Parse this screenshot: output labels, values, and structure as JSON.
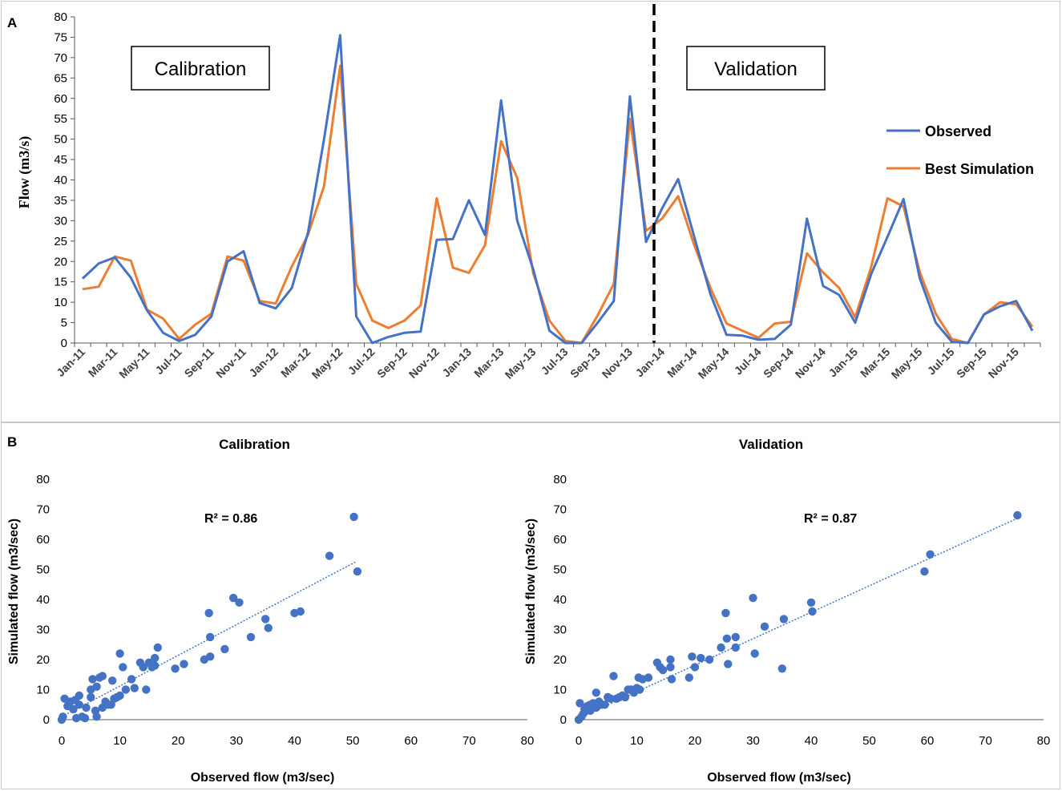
{
  "chart_data": [
    {
      "type": "line",
      "panel": "A",
      "title": "",
      "xlabel": "",
      "ylabel": "Flow (m3/s)",
      "ylim": [
        0,
        80
      ],
      "yticks": [
        0,
        5,
        10,
        15,
        20,
        25,
        30,
        35,
        40,
        45,
        50,
        55,
        60,
        65,
        70,
        75,
        80
      ],
      "categories": [
        "Jan-11",
        "Feb-11",
        "Mar-11",
        "Apr-11",
        "May-11",
        "Jun-11",
        "Jul-11",
        "Aug-11",
        "Sep-11",
        "Oct-11",
        "Nov-11",
        "Dec-11",
        "Jan-12",
        "Feb-12",
        "Mar-12",
        "Apr-12",
        "May-12",
        "Jun-12",
        "Jul-12",
        "Aug-12",
        "Sep-12",
        "Oct-12",
        "Nov-12",
        "Dec-12",
        "Jan-13",
        "Feb-13",
        "Mar-13",
        "Apr-13",
        "May-13",
        "Jun-13",
        "Jul-13",
        "Aug-13",
        "Sep-13",
        "Oct-13",
        "Nov-13",
        "Dec-13",
        "Jan-14",
        "Feb-14",
        "Mar-14",
        "Apr-14",
        "May-14",
        "Jun-14",
        "Jul-14",
        "Aug-14",
        "Sep-14",
        "Oct-14",
        "Nov-14",
        "Dec-14",
        "Jan-15",
        "Feb-15",
        "Mar-15",
        "Apr-15",
        "May-15",
        "Jun-15",
        "Jul-15",
        "Aug-15",
        "Sep-15",
        "Oct-15",
        "Nov-15",
        "Dec-15"
      ],
      "tick_labels": [
        "Jan-11",
        "Mar-11",
        "May-11",
        "Jul-11",
        "Sep-11",
        "Nov-11",
        "Jan-12",
        "Mar-12",
        "May-12",
        "Jul-12",
        "Sep-12",
        "Nov-12",
        "Jan-13",
        "Mar-13",
        "May-13",
        "Jul-13",
        "Sep-13",
        "Nov-13",
        "Jan-14",
        "Mar-14",
        "May-14",
        "Jul-14",
        "Sep-14",
        "Nov-14",
        "Jan-15",
        "Mar-15",
        "May-15",
        "Jul-15",
        "Sep-15",
        "Nov-15"
      ],
      "series": [
        {
          "name": "Observed",
          "color": "#4472C4",
          "values": [
            15.8,
            19.5,
            21,
            16,
            8,
            2.5,
            0.5,
            2,
            6.5,
            20,
            22.5,
            9.8,
            8.5,
            13.5,
            27,
            50,
            75.5,
            6.5,
            0,
            1.5,
            2.5,
            2.8,
            25.3,
            25.5,
            35,
            26.5,
            59.5,
            30,
            18,
            3,
            0,
            0,
            5,
            10.3,
            60.5,
            24.8,
            33,
            40.2,
            26,
            12,
            2,
            1.8,
            0.8,
            1,
            4.5,
            30.5,
            14,
            11.8,
            5,
            17,
            26,
            35.3,
            16,
            5,
            0.3,
            0,
            7,
            9,
            10.3,
            3
          ]
        },
        {
          "name": "Best Simulation",
          "color": "#ED7D31",
          "values": [
            13.2,
            13.8,
            21.2,
            20.2,
            8.2,
            6,
            1,
            4.5,
            7.2,
            21.2,
            20.2,
            10.3,
            9.7,
            18.8,
            26.5,
            38.5,
            68,
            14.5,
            5.5,
            3.7,
            5.5,
            9.2,
            35.5,
            18.5,
            17.2,
            24,
            49.5,
            40.5,
            17,
            5.5,
            0.5,
            0,
            6.8,
            14.5,
            55,
            27.5,
            30.5,
            36,
            24,
            13.5,
            4.8,
            3,
            1.3,
            4.8,
            5.2,
            22,
            17.3,
            13.5,
            6.3,
            18.8,
            35.5,
            33.5,
            17.5,
            7.2,
            1,
            0,
            7,
            10,
            9.5,
            4
          ]
        }
      ],
      "annotations": [
        "Calibration",
        "Validation"
      ],
      "split_after": "Dec-13",
      "legend_placement": "right"
    },
    {
      "type": "scatter",
      "panel": "B",
      "title": "Calibration",
      "xlabel": "Observed flow (m3/sec)",
      "ylabel": "Simulated flow (m3/sec)",
      "xlim": [
        0,
        80
      ],
      "ylim": [
        0,
        80
      ],
      "xticks": [
        0,
        10,
        20,
        30,
        40,
        50,
        60,
        70,
        80
      ],
      "yticks": [
        0,
        10,
        20,
        30,
        40,
        50,
        60,
        70,
        80
      ],
      "r2": "R² = 0.86",
      "trendline": {
        "x": [
          0,
          50.5
        ],
        "y": [
          1,
          52.5
        ]
      },
      "color": "#4472C4",
      "points": [
        [
          0,
          0
        ],
        [
          0.2,
          1
        ],
        [
          0.5,
          7
        ],
        [
          1,
          4.5
        ],
        [
          1.5,
          6
        ],
        [
          2,
          3.5
        ],
        [
          2.3,
          6.5
        ],
        [
          2.5,
          0.5
        ],
        [
          3,
          5
        ],
        [
          3,
          8
        ],
        [
          3.5,
          1
        ],
        [
          4,
          0.5
        ],
        [
          4.2,
          4
        ],
        [
          5,
          10
        ],
        [
          5,
          7.5
        ],
        [
          5.3,
          13.5
        ],
        [
          5.8,
          3
        ],
        [
          6,
          1
        ],
        [
          6,
          11
        ],
        [
          6.5,
          14
        ],
        [
          7,
          14.5
        ],
        [
          7,
          4
        ],
        [
          7.5,
          6
        ],
        [
          8,
          5
        ],
        [
          8.5,
          5
        ],
        [
          8.7,
          13
        ],
        [
          9,
          7
        ],
        [
          9.5,
          7.5
        ],
        [
          10,
          22
        ],
        [
          10,
          8
        ],
        [
          10.5,
          17.5
        ],
        [
          11,
          10
        ],
        [
          12,
          13.5
        ],
        [
          12.5,
          10.5
        ],
        [
          13.5,
          19
        ],
        [
          14,
          17.5
        ],
        [
          14.5,
          10
        ],
        [
          15,
          19
        ],
        [
          15.5,
          17.5
        ],
        [
          16,
          18
        ],
        [
          16.5,
          24
        ],
        [
          16,
          20.5
        ],
        [
          19.5,
          17
        ],
        [
          21,
          18.5
        ],
        [
          24.5,
          20
        ],
        [
          25.3,
          35.5
        ],
        [
          25.5,
          21
        ],
        [
          25.5,
          27.5
        ],
        [
          28,
          23.5
        ],
        [
          29.5,
          40.5
        ],
        [
          30.5,
          39
        ],
        [
          32.5,
          27.5
        ],
        [
          35,
          33.5
        ],
        [
          35.5,
          30.5
        ],
        [
          40,
          35.5
        ],
        [
          41,
          36
        ],
        [
          46,
          54.5
        ],
        [
          50.2,
          67.5
        ],
        [
          50.8,
          49.3
        ]
      ]
    },
    {
      "type": "scatter",
      "panel": "B",
      "title": "Validation",
      "xlabel": "Observed flow (m3/sec)",
      "ylabel": "Simulated flow (m3/sec)",
      "xlim": [
        0,
        80
      ],
      "ylim": [
        0,
        80
      ],
      "xticks": [
        0,
        10,
        20,
        30,
        40,
        50,
        60,
        70,
        80
      ],
      "yticks": [
        0,
        10,
        20,
        30,
        40,
        50,
        60,
        70,
        80
      ],
      "r2": "R² = 0.87",
      "trendline": {
        "x": [
          0,
          75.5
        ],
        "y": [
          0.5,
          67
        ]
      },
      "color": "#4472C4",
      "points": [
        [
          0,
          0
        ],
        [
          0.2,
          5.5
        ],
        [
          0.5,
          1
        ],
        [
          0.8,
          2
        ],
        [
          1,
          3.5
        ],
        [
          1.5,
          4.5
        ],
        [
          2,
          3
        ],
        [
          2,
          5
        ],
        [
          2.5,
          5.5
        ],
        [
          3,
          9
        ],
        [
          3,
          4
        ],
        [
          3.5,
          6
        ],
        [
          4,
          5
        ],
        [
          4.5,
          5
        ],
        [
          5,
          7.5
        ],
        [
          5.5,
          7
        ],
        [
          6,
          14.5
        ],
        [
          6.5,
          7
        ],
        [
          7,
          7.5
        ],
        [
          7.5,
          8
        ],
        [
          8,
          7.5
        ],
        [
          8.5,
          10
        ],
        [
          9,
          10
        ],
        [
          9.5,
          9
        ],
        [
          10,
          10.5
        ],
        [
          10.3,
          14
        ],
        [
          10.5,
          10
        ],
        [
          11,
          13.5
        ],
        [
          12,
          14
        ],
        [
          13.5,
          19
        ],
        [
          14,
          17.5
        ],
        [
          14.5,
          16.5
        ],
        [
          15.8,
          20
        ],
        [
          15.8,
          17.5
        ],
        [
          16,
          13.5
        ],
        [
          19,
          14
        ],
        [
          19.5,
          21
        ],
        [
          20,
          17.5
        ],
        [
          21,
          20.5
        ],
        [
          22.5,
          20
        ],
        [
          24.5,
          24
        ],
        [
          25.3,
          35.5
        ],
        [
          25.5,
          27
        ],
        [
          25.7,
          18.5
        ],
        [
          27,
          27.5
        ],
        [
          27,
          24
        ],
        [
          30,
          40.5
        ],
        [
          30.3,
          22
        ],
        [
          32,
          31
        ],
        [
          35.3,
          33.5
        ],
        [
          35,
          17
        ],
        [
          40,
          39
        ],
        [
          40.2,
          36
        ],
        [
          59.5,
          49.3
        ],
        [
          60.5,
          55
        ],
        [
          75.5,
          68
        ]
      ]
    }
  ],
  "panel_labels": {
    "a": "A",
    "b": "B"
  }
}
